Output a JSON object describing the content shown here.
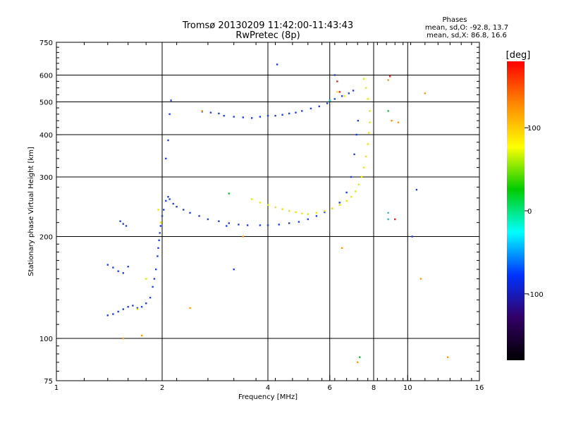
{
  "chart_data": {
    "type": "scatter",
    "title": "Tromsø 20130209 11:42:00-11:43:43",
    "subtitle": "RwPretec (8p)",
    "xlabel": "Frequency [MHz]",
    "ylabel": "Stationary phase Virtual Height [km]",
    "x_scale": "log",
    "y_scale": "log",
    "xlim": [
      1,
      16
    ],
    "ylim": [
      75,
      750
    ],
    "x_ticks": [
      1,
      2,
      4,
      6,
      8,
      10,
      16
    ],
    "y_ticks": [
      75,
      100,
      200,
      300,
      400,
      500,
      600,
      750
    ],
    "grid": true,
    "annotation": {
      "title": "Phases",
      "line1": "mean, sd,O: -92.8, 13.7",
      "line2": "mean, sd,X:  86.8, 16.6"
    },
    "colorbar": {
      "label": "[deg]",
      "range": [
        -180,
        180
      ],
      "ticks": [
        100,
        0,
        -100
      ],
      "colors": [
        "#ff0000",
        "#ff8800",
        "#ffff00",
        "#00cc00",
        "#00ffff",
        "#0033ff",
        "#330066",
        "#000000"
      ]
    },
    "series": [
      {
        "phase": -100,
        "color": "#1f3fe0",
        "points": [
          [
            1.4,
            117
          ],
          [
            1.45,
            118
          ],
          [
            1.5,
            120
          ],
          [
            1.55,
            122
          ],
          [
            1.6,
            124
          ],
          [
            1.65,
            125
          ],
          [
            1.7,
            123
          ],
          [
            1.75,
            124
          ],
          [
            1.8,
            127
          ],
          [
            1.85,
            132
          ],
          [
            1.88,
            142
          ],
          [
            1.4,
            165
          ],
          [
            1.45,
            162
          ],
          [
            1.5,
            158
          ],
          [
            1.55,
            156
          ],
          [
            1.6,
            163
          ],
          [
            1.52,
            222
          ],
          [
            1.55,
            218
          ],
          [
            1.58,
            215
          ],
          [
            1.9,
            150
          ],
          [
            1.92,
            160
          ],
          [
            1.94,
            175
          ],
          [
            1.95,
            185
          ],
          [
            1.96,
            195
          ],
          [
            1.97,
            205
          ],
          [
            1.98,
            215
          ],
          [
            2.0,
            230
          ],
          [
            2.02,
            240
          ],
          [
            2.05,
            255
          ],
          [
            2.08,
            262
          ],
          [
            2.1,
            258
          ],
          [
            2.05,
            340
          ],
          [
            2.08,
            385
          ],
          [
            2.1,
            460
          ],
          [
            2.12,
            505
          ],
          [
            2.15,
            250
          ],
          [
            2.2,
            245
          ],
          [
            2.3,
            240
          ],
          [
            2.4,
            235
          ],
          [
            2.55,
            230
          ],
          [
            2.7,
            225
          ],
          [
            2.9,
            222
          ],
          [
            3.1,
            219
          ],
          [
            3.3,
            217
          ],
          [
            3.5,
            216
          ],
          [
            3.8,
            216
          ],
          [
            4.0,
            216
          ],
          [
            4.3,
            217
          ],
          [
            4.6,
            219
          ],
          [
            4.9,
            221
          ],
          [
            5.2,
            225
          ],
          [
            5.5,
            230
          ],
          [
            5.8,
            236
          ],
          [
            6.1,
            242
          ],
          [
            6.4,
            252
          ],
          [
            6.7,
            270
          ],
          [
            6.9,
            300
          ],
          [
            7.05,
            350
          ],
          [
            7.15,
            400
          ],
          [
            7.22,
            440
          ],
          [
            3.0,
            455
          ],
          [
            3.2,
            452
          ],
          [
            3.4,
            450
          ],
          [
            3.6,
            448
          ],
          [
            3.8,
            452
          ],
          [
            4.0,
            455
          ],
          [
            4.2,
            455
          ],
          [
            4.4,
            458
          ],
          [
            4.6,
            462
          ],
          [
            4.8,
            465
          ],
          [
            5.0,
            470
          ],
          [
            5.3,
            478
          ],
          [
            5.6,
            485
          ],
          [
            5.9,
            495
          ],
          [
            6.2,
            510
          ],
          [
            6.5,
            520
          ],
          [
            6.8,
            530
          ],
          [
            7.0,
            540
          ],
          [
            2.6,
            468
          ],
          [
            2.75,
            465
          ],
          [
            2.9,
            462
          ],
          [
            6.2,
            600
          ],
          [
            4.25,
            645
          ],
          [
            10.6,
            275
          ],
          [
            10.3,
            200
          ],
          [
            3.2,
            160
          ],
          [
            3.05,
            215
          ]
        ]
      },
      {
        "phase": 120,
        "color": "#e8e800",
        "points": [
          [
            3.6,
            258
          ],
          [
            3.8,
            252
          ],
          [
            4.0,
            248
          ],
          [
            4.2,
            244
          ],
          [
            4.4,
            241
          ],
          [
            4.6,
            238
          ],
          [
            4.8,
            236
          ],
          [
            5.0,
            234
          ],
          [
            5.2,
            233
          ],
          [
            5.5,
            235
          ],
          [
            5.8,
            238
          ],
          [
            6.1,
            242
          ],
          [
            6.4,
            248
          ],
          [
            6.7,
            255
          ],
          [
            6.9,
            262
          ],
          [
            7.1,
            272
          ],
          [
            7.25,
            285
          ],
          [
            7.4,
            300
          ],
          [
            7.5,
            320
          ],
          [
            7.6,
            345
          ],
          [
            7.7,
            375
          ],
          [
            7.75,
            405
          ],
          [
            7.8,
            435
          ],
          [
            7.8,
            470
          ],
          [
            7.7,
            510
          ],
          [
            7.6,
            550
          ],
          [
            7.5,
            585
          ],
          [
            6.3,
            535
          ],
          [
            6.6,
            520
          ],
          [
            1.98,
            220
          ],
          [
            1.95,
            240
          ],
          [
            1.7,
            122
          ],
          [
            1.8,
            150
          ]
        ]
      },
      {
        "phase": 140,
        "color": "#ff9900",
        "points": [
          [
            2.6,
            470
          ],
          [
            3.4,
            200
          ],
          [
            6.5,
            185
          ],
          [
            9.0,
            440
          ],
          [
            9.4,
            435
          ],
          [
            10.9,
            150
          ],
          [
            11.2,
            530
          ],
          [
            13.0,
            88
          ],
          [
            1.75,
            102
          ],
          [
            1.55,
            100
          ],
          [
            2.4,
            123
          ],
          [
            7.2,
            85
          ],
          [
            8.8,
            580
          ]
        ]
      },
      {
        "phase": 30,
        "color": "#00cc33",
        "points": [
          [
            3.1,
            268
          ],
          [
            8.8,
            470
          ],
          [
            7.3,
            88
          ]
        ]
      },
      {
        "phase": -20,
        "color": "#00cccc",
        "points": [
          [
            8.8,
            235
          ],
          [
            8.8,
            225
          ],
          [
            6.0,
            505
          ]
        ]
      },
      {
        "phase": 170,
        "color": "#ee2222",
        "points": [
          [
            9.2,
            225
          ],
          [
            6.3,
            575
          ],
          [
            8.9,
            595
          ],
          [
            6.4,
            535
          ]
        ]
      }
    ]
  }
}
